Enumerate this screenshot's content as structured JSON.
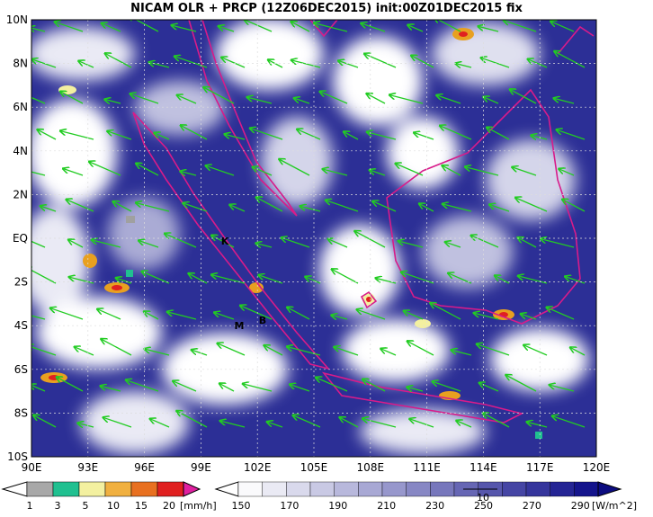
{
  "title": "NICAM OLR + PRCP (12Z06DEC2015) init:00Z01DEC2015 fix",
  "lat_labels": [
    "10N",
    "8N",
    "6N",
    "4N",
    "2N",
    "EQ",
    "2S",
    "4S",
    "6S",
    "8S",
    "10S"
  ],
  "lon_labels": [
    "90E",
    "93E",
    "96E",
    "99E",
    "102E",
    "105E",
    "108E",
    "111E",
    "114E",
    "117E",
    "120E"
  ],
  "places": [
    "K",
    "M",
    "B"
  ],
  "precip_legend": {
    "labels": [
      "1",
      "3",
      "5",
      "10",
      "15",
      "20"
    ],
    "unit": "[mm/h]"
  },
  "olr_legend": {
    "labels": [
      "150",
      "170",
      "190",
      "210",
      "230",
      "250",
      "270",
      "290"
    ],
    "unit": "[W/m^2]"
  },
  "vector_reference": "10"
}
